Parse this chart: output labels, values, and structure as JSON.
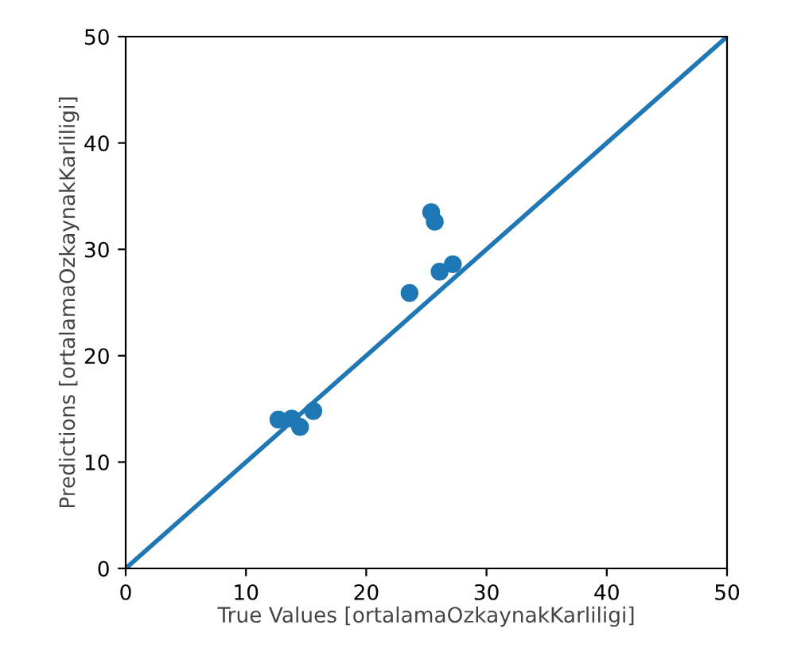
{
  "chart_data": {
    "type": "scatter",
    "xlabel": "True Values [ortalamaOzkaynakKarliligi]",
    "ylabel": "Predictions [ortalamaOzkaynakKarliligi]",
    "xlim": [
      0,
      50
    ],
    "ylim": [
      0,
      50
    ],
    "xticks": [
      0,
      10,
      20,
      30,
      40,
      50
    ],
    "yticks": [
      0,
      10,
      20,
      30,
      40,
      50
    ],
    "grid": false,
    "series": [
      {
        "color": "#1f77b4",
        "marker": "circle",
        "x": [
          12.7,
          13.8,
          14.5,
          15.6,
          23.6,
          25.4,
          25.7,
          26.1,
          27.2
        ],
        "values": [
          14.0,
          14.1,
          13.3,
          14.8,
          25.9,
          33.5,
          32.6,
          27.9,
          28.6
        ]
      },
      {
        "type": "line",
        "color": "#1f77b4",
        "marker": "none",
        "x": [
          0,
          50
        ],
        "values": [
          0,
          50
        ]
      }
    ]
  }
}
